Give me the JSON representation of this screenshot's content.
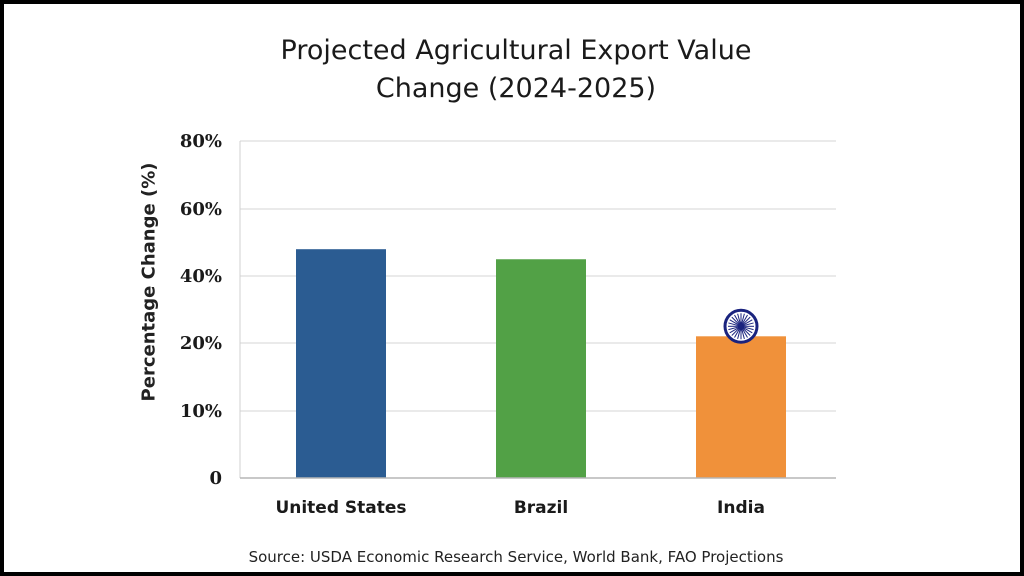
{
  "chart_data": {
    "type": "bar",
    "title_lines": [
      "Projected Agricultural Export Value",
      "Change (2024-2025)"
    ],
    "ylabel": "Percentage Change (%)",
    "xlabel": "",
    "categories": [
      "United States",
      "Brazil",
      "India"
    ],
    "values": [
      48,
      45,
      22
    ],
    "y_ticks": [
      {
        "label": "0",
        "value": 0
      },
      {
        "label": "10%",
        "value": 10
      },
      {
        "label": "20%",
        "value": 20
      },
      {
        "label": "40%",
        "value": 40
      },
      {
        "label": "60%",
        "value": 60
      },
      {
        "label": "80%",
        "value": 80
      }
    ],
    "colors": [
      "#2b5c92",
      "#52a146",
      "#f0913a"
    ],
    "grid": true,
    "emblem": {
      "category": "India",
      "icon": "ashoka-chakra-icon",
      "color": "#1a237e"
    },
    "source": "Source: USDA Economic Research Service, World Bank, FAO Projections"
  }
}
